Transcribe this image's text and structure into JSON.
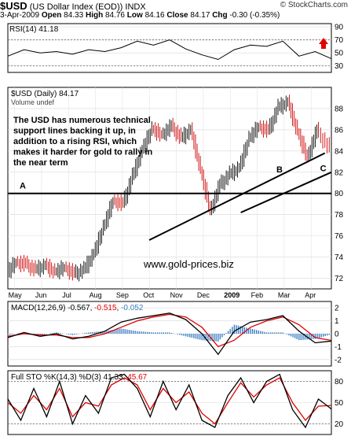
{
  "header": {
    "symbol": "$USD",
    "name": "(US Dollar Index (EOD))",
    "exchange": "INDX",
    "brand": "© StockCharts.com",
    "date": "3-Apr-2009",
    "open_label": "Open",
    "open": "84.33",
    "high_label": "High",
    "high": "84.76",
    "low_label": "Low",
    "low": "84.16",
    "close_label": "Close",
    "close": "84.17",
    "chg_label": "Chg",
    "chg": "-0.30 (-0.35%)"
  },
  "colors": {
    "price_up": "#000000",
    "price_down": "#cc0000",
    "macd_line": "#000000",
    "signal_line": "#e00000",
    "histogram": "#3a7fc1",
    "rsi_fill": "#4a8a3a",
    "arrow": "#e00000"
  },
  "chart_data": [
    {
      "type": "line",
      "panel": "RSI",
      "label": "RSI(14)",
      "last_value": "41.18",
      "ylim": [
        20,
        95
      ],
      "ticks": [
        "90",
        "70",
        "50",
        "30"
      ],
      "reference_lines": [
        70,
        30
      ],
      "x": [
        0,
        0.05,
        0.1,
        0.15,
        0.2,
        0.25,
        0.3,
        0.35,
        0.4,
        0.45,
        0.5,
        0.55,
        0.6,
        0.65,
        0.7,
        0.75,
        0.8,
        0.85,
        0.9,
        0.95,
        1
      ],
      "values": [
        45,
        55,
        50,
        52,
        48,
        55,
        52,
        58,
        68,
        62,
        70,
        56,
        47,
        40,
        55,
        62,
        60,
        68,
        45,
        52,
        41
      ]
    },
    {
      "type": "bar",
      "panel": "Price",
      "label": "$USD (Daily)",
      "last_value": "84.17",
      "volume_label": "Volume undef",
      "ylim": [
        71,
        90
      ],
      "y_ticks": [
        "88",
        "86",
        "84",
        "82",
        "80",
        "78",
        "76",
        "74",
        "72"
      ],
      "x_labels": [
        "May",
        "Jun",
        "Jul",
        "Aug",
        "Sep",
        "Oct",
        "Nov",
        "Dec",
        "2009",
        "Feb",
        "Mar",
        "Apr"
      ],
      "annotation_text": "The USD has numerous technical support lines backing it up, in addition to a rising RSI, which makes it harder for gold to rally in the near term",
      "watermark": "www.gold-prices.biz",
      "line_labels": [
        "A",
        "B",
        "C"
      ],
      "horizontal_line": 80,
      "x": [
        0,
        0.03,
        0.06,
        0.09,
        0.12,
        0.15,
        0.18,
        0.21,
        0.24,
        0.27,
        0.3,
        0.33,
        0.36,
        0.39,
        0.42,
        0.45,
        0.48,
        0.51,
        0.54,
        0.57,
        0.6,
        0.63,
        0.66,
        0.69,
        0.72,
        0.75,
        0.78,
        0.81,
        0.84,
        0.87,
        0.9,
        0.93,
        0.96,
        1
      ],
      "values": [
        72.5,
        73.5,
        73.3,
        72.8,
        73.2,
        72.6,
        73.0,
        72.4,
        72.8,
        74.3,
        76.8,
        79.3,
        79.0,
        81.6,
        84.1,
        86.1,
        85.5,
        86.3,
        85.2,
        86.0,
        82.2,
        78.3,
        80.8,
        81.8,
        82.4,
        85.2,
        86.3,
        85.9,
        88.1,
        88.6,
        85.8,
        83.4,
        85.9,
        84.2
      ]
    },
    {
      "type": "line",
      "panel": "MACD",
      "label": "MACD(12,26,9)",
      "macd_value": "-0.567",
      "signal_value": "-0.515",
      "histogram_value": "-0.052",
      "ylim": [
        -2.5,
        2.5
      ],
      "y_ticks": [
        "2",
        "1",
        "0",
        "-1",
        "-2"
      ],
      "x": [
        0,
        0.05,
        0.1,
        0.15,
        0.2,
        0.25,
        0.3,
        0.35,
        0.4,
        0.45,
        0.5,
        0.55,
        0.6,
        0.65,
        0.7,
        0.75,
        0.8,
        0.85,
        0.9,
        0.95,
        1
      ],
      "series": [
        {
          "values": [
            -0.3,
            0.1,
            -0.2,
            0.0,
            -0.4,
            -0.2,
            0.2,
            0.9,
            1.2,
            1.4,
            1.6,
            1.1,
            0.0,
            -1.6,
            0.2,
            0.9,
            1.1,
            1.4,
            0.2,
            -0.7,
            -0.57
          ]
        },
        {
          "values": [
            -0.2,
            0.0,
            -0.1,
            -0.1,
            -0.3,
            -0.3,
            0.0,
            0.5,
            1.0,
            1.3,
            1.5,
            1.3,
            0.5,
            -1.0,
            -0.5,
            0.5,
            1.0,
            1.3,
            0.7,
            -0.3,
            -0.52
          ]
        }
      ],
      "histogram": [
        -0.1,
        0.1,
        -0.1,
        0.1,
        -0.1,
        0.1,
        0.2,
        0.4,
        0.2,
        0.1,
        0.1,
        -0.2,
        -0.5,
        -0.6,
        0.7,
        0.4,
        0.1,
        0.1,
        -0.5,
        -0.4,
        -0.05
      ]
    },
    {
      "type": "line",
      "panel": "Full STO",
      "label": "Full STO %K(14,3) %D(3)",
      "k_value": "41.33",
      "d_value": "45.67",
      "ylim": [
        5,
        95
      ],
      "y_ticks": [
        "80",
        "50",
        "20"
      ],
      "reference_lines": [
        80,
        20
      ],
      "x": [
        0,
        0.04,
        0.08,
        0.12,
        0.16,
        0.2,
        0.24,
        0.28,
        0.32,
        0.36,
        0.4,
        0.44,
        0.48,
        0.52,
        0.56,
        0.6,
        0.64,
        0.68,
        0.72,
        0.76,
        0.8,
        0.84,
        0.88,
        0.92,
        0.96,
        1
      ],
      "series": [
        {
          "values": [
            55,
            25,
            70,
            30,
            80,
            20,
            60,
            35,
            85,
            90,
            70,
            30,
            80,
            40,
            75,
            25,
            15,
            60,
            85,
            50,
            80,
            90,
            40,
            15,
            55,
            41
          ]
        },
        {
          "values": [
            50,
            35,
            60,
            40,
            70,
            30,
            50,
            45,
            75,
            85,
            75,
            40,
            70,
            50,
            65,
            35,
            20,
            50,
            78,
            58,
            75,
            85,
            50,
            25,
            45,
            46
          ]
        }
      ]
    }
  ]
}
